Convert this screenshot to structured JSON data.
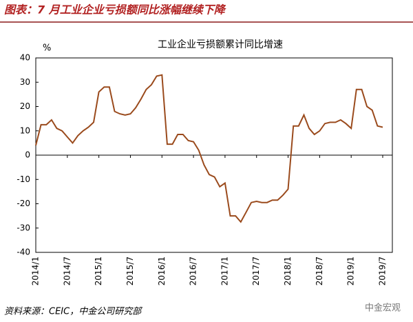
{
  "heading": "图表：7 月工业企业亏损额同比涨幅继续下降",
  "source": "资料来源：CEIC，中金公司研究部",
  "watermark": "中金宏观",
  "chart_data": {
    "type": "line",
    "title": "工业企业亏损额累计同比增速",
    "y_label": "%",
    "categories": [
      "2014/1",
      null,
      null,
      null,
      null,
      null,
      "2014/7",
      null,
      null,
      null,
      null,
      null,
      "2015/1",
      null,
      null,
      null,
      null,
      null,
      "2015/7",
      null,
      null,
      null,
      null,
      null,
      "2016/1",
      null,
      null,
      null,
      null,
      null,
      "2016/7",
      null,
      null,
      null,
      null,
      null,
      "2017/1",
      null,
      null,
      null,
      null,
      null,
      "2017/7",
      null,
      null,
      null,
      null,
      null,
      "2018/1",
      null,
      null,
      null,
      null,
      null,
      "2018/7",
      null,
      null,
      null,
      null,
      null,
      "2019/1",
      null,
      null,
      null,
      null,
      null,
      "2019/7"
    ],
    "series": [
      {
        "name": "工业企业亏损额累计同比增速",
        "color": "#9a4a1c",
        "values": [
          4,
          12.5,
          12.5,
          14.5,
          11,
          10,
          7.5,
          5,
          8,
          10,
          11.5,
          13.5,
          26,
          28,
          28,
          18,
          17,
          16.5,
          17,
          19.5,
          23,
          27,
          29,
          32.5,
          33,
          4.5,
          4.5,
          8.5,
          8.5,
          6,
          5.5,
          2,
          -4,
          -8,
          -9,
          -13,
          -11.5,
          -25,
          -25,
          -27.5,
          -23.5,
          -19.5,
          -19,
          -19.5,
          -19.5,
          -18.5,
          -18.5,
          -16.5,
          -14,
          12,
          12,
          16.5,
          11,
          8.5,
          10,
          13,
          13.5,
          13.5,
          14.5,
          13,
          11,
          27,
          27,
          20,
          18.5,
          12,
          11.5
        ]
      }
    ],
    "ylim": [
      -40,
      40
    ],
    "yticks": [
      40,
      30,
      20,
      10,
      0,
      -10,
      -20,
      -30,
      -40
    ]
  }
}
